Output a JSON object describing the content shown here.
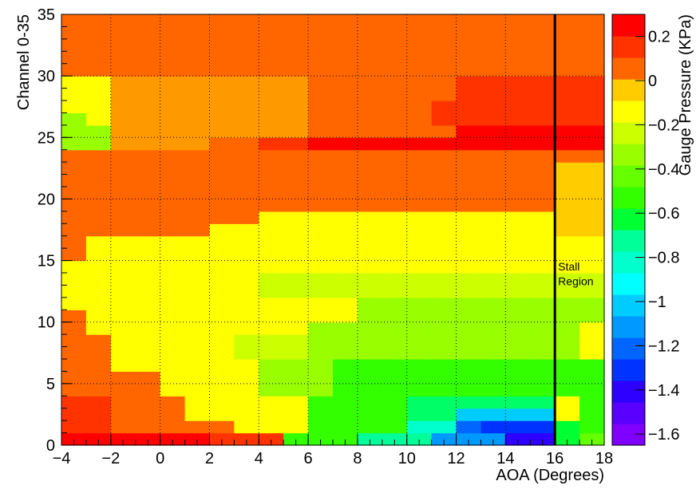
{
  "chart_data": {
    "type": "heatmap",
    "xlabel": "AOA (Degrees)",
    "ylabel": "Channel 0-35",
    "zlabel": "Gauge Pressure (KPa)",
    "xlim": [
      -4,
      18
    ],
    "ylim": [
      0,
      35
    ],
    "zlim": [
      -1.65,
      0.3
    ],
    "x_ticks": [
      -4,
      -2,
      0,
      2,
      4,
      6,
      8,
      10,
      12,
      14,
      16,
      18
    ],
    "y_ticks": [
      0,
      5,
      10,
      15,
      20,
      25,
      30,
      35
    ],
    "z_ticks": [
      0.2,
      0,
      -0.2,
      -0.4,
      -0.6,
      -0.8,
      -1,
      -1.2,
      -1.4,
      -1.6
    ],
    "x_tick_labels": [
      "−4",
      "−2",
      "0",
      "2",
      "4",
      "6",
      "8",
      "10",
      "12",
      "14",
      "16",
      "18"
    ],
    "y_tick_labels": [
      "0",
      "5",
      "10",
      "15",
      "20",
      "25",
      "30",
      "35"
    ],
    "z_tick_labels": [
      "0.2",
      "0",
      "−0.2",
      "−0.4",
      "−0.6",
      "−0.8",
      "−1",
      "−1.2",
      "−1.4",
      "−1.6"
    ],
    "grid": true,
    "x_bin_width": 0.5,
    "y_bin_height": 1,
    "color_levels": 20,
    "stall_line": {
      "x": 16,
      "label_line1": "Stall",
      "label_line2": "Region"
    },
    "palette": [
      "#7f00ff",
      "#5a00ff",
      "#2d00ff",
      "#0000ff",
      "#0033ff",
      "#0066ff",
      "#0099ff",
      "#00ccff",
      "#00ffff",
      "#00ffcc",
      "#00ff99",
      "#00ff66",
      "#00ff33",
      "#33ff00",
      "#66ff00",
      "#99ff00",
      "#ccff00",
      "#ffff00",
      "#ffcc00",
      "#ff9900",
      "#ff6600",
      "#ff3300",
      "#ff0000"
    ],
    "palette_min": -1.65,
    "palette_max": 0.3,
    "regions": [
      {
        "x0": -4,
        "x1": 18,
        "y0": 30,
        "y1": 35,
        "z": 0.08
      },
      {
        "x0": -4,
        "x1": 18,
        "y0": 16,
        "y1": 30,
        "z": -0.18
      },
      {
        "x0": -4,
        "x1": 18,
        "y0": 0,
        "y1": 16,
        "z": -0.18
      },
      {
        "x0": -2,
        "x1": 6,
        "y0": 24,
        "y1": 30,
        "z": 0.0
      },
      {
        "x0": 6,
        "x1": 12,
        "y0": 24,
        "y1": 30,
        "z": 0.05
      },
      {
        "x0": 12,
        "x1": 18,
        "y0": 28,
        "y1": 30,
        "z": 0.16
      },
      {
        "x0": 11,
        "x1": 18,
        "y0": 26,
        "y1": 28,
        "z": 0.16
      },
      {
        "x0": 12,
        "x1": 18,
        "y0": 24,
        "y1": 26,
        "z": 0.25
      },
      {
        "x0": 6,
        "x1": 16,
        "y0": 24,
        "y1": 25,
        "z": 0.25
      },
      {
        "x0": 4,
        "x1": 6,
        "y0": 24,
        "y1": 25,
        "z": 0.16
      },
      {
        "x0": 2,
        "x1": 4,
        "y0": 24,
        "y1": 25,
        "z": 0.1
      },
      {
        "x0": -4,
        "x1": -3,
        "y0": 24,
        "y1": 27,
        "z": -0.35
      },
      {
        "x0": -3,
        "x1": -2,
        "y0": 24,
        "y1": 26,
        "z": -0.3
      },
      {
        "x0": -4,
        "x1": -2,
        "y0": 27,
        "y1": 29,
        "z": -0.2
      },
      {
        "x0": -4,
        "x1": 16,
        "y0": 17,
        "y1": 24,
        "z": 0.08
      },
      {
        "x0": -4,
        "x1": 18,
        "y0": 23,
        "y1": 24,
        "z": 0.1
      },
      {
        "x0": 16,
        "x1": 18,
        "y0": 17,
        "y1": 23,
        "z": -0.12
      },
      {
        "x0": -4,
        "x1": -3,
        "y0": 15,
        "y1": 18,
        "z": 0.05
      },
      {
        "x0": 4,
        "x1": 16,
        "y0": 17,
        "y1": 19,
        "z": -0.18
      },
      {
        "x0": 2,
        "x1": 4,
        "y0": 17,
        "y1": 18,
        "z": -0.18
      },
      {
        "x0": 4,
        "x1": 18,
        "y0": 12,
        "y1": 14,
        "z": -0.24
      },
      {
        "x0": 8,
        "x1": 18,
        "y0": 10,
        "y1": 12,
        "z": -0.3
      },
      {
        "x0": 8,
        "x1": 17,
        "y0": 7,
        "y1": 10,
        "z": -0.36
      },
      {
        "x0": 6,
        "x1": 8,
        "y0": 7,
        "y1": 10,
        "z": -0.3
      },
      {
        "x0": 3,
        "x1": 6,
        "y0": 7,
        "y1": 9,
        "z": -0.24
      },
      {
        "x0": 4,
        "x1": 7,
        "y0": 4,
        "y1": 7,
        "z": -0.36
      },
      {
        "x0": 7,
        "x1": 17,
        "y0": 4,
        "y1": 7,
        "z": -0.48
      },
      {
        "x0": 17,
        "x1": 18,
        "y0": 1,
        "y1": 7,
        "z": -0.5
      },
      {
        "x0": 6,
        "x1": 10,
        "y0": 1,
        "y1": 4,
        "z": -0.5
      },
      {
        "x0": 10,
        "x1": 16,
        "y0": 1,
        "y1": 4,
        "z": -0.65
      },
      {
        "x0": 10,
        "x1": 12,
        "y0": 1,
        "y1": 2,
        "z": -0.85
      },
      {
        "x0": 12,
        "x1": 16,
        "y0": 2,
        "y1": 3,
        "z": -1.0
      },
      {
        "x0": 12,
        "x1": 16,
        "y0": 1,
        "y1": 2,
        "z": -1.15
      },
      {
        "x0": 13,
        "x1": 16,
        "y0": 1,
        "y1": 2,
        "z": -1.3
      },
      {
        "x0": 14,
        "x1": 16,
        "y0": 0,
        "y1": 1,
        "z": -1.45
      },
      {
        "x0": 16,
        "x1": 17,
        "y0": 0,
        "y1": 2,
        "z": -0.55
      },
      {
        "x0": 17,
        "x1": 18,
        "y0": 0,
        "y1": 1,
        "z": -0.45
      },
      {
        "x0": 11,
        "x1": 14,
        "y0": 0,
        "y1": 1,
        "z": -1.1
      },
      {
        "x0": 8,
        "x1": 11,
        "y0": 0,
        "y1": 1,
        "z": -0.8
      },
      {
        "x0": 5,
        "x1": 8,
        "y0": 0,
        "y1": 1,
        "z": -0.5
      },
      {
        "x0": -4,
        "x1": -3,
        "y0": 0,
        "y1": 11,
        "z": 0.08
      },
      {
        "x0": -3,
        "x1": -2,
        "y0": 1,
        "y1": 9,
        "z": 0.08
      },
      {
        "x0": -2,
        "x1": 0,
        "y0": 1,
        "y1": 6,
        "z": 0.08
      },
      {
        "x0": 0,
        "x1": 1,
        "y0": 1,
        "y1": 4,
        "z": 0.08
      },
      {
        "x0": -4,
        "x1": -2,
        "y0": 1,
        "y1": 4,
        "z": 0.16
      },
      {
        "x0": -4,
        "x1": 2,
        "y0": 0,
        "y1": 1,
        "z": 0.25
      },
      {
        "x0": 2,
        "x1": 5,
        "y0": 0,
        "y1": 1,
        "z": 0.16
      },
      {
        "x0": 1,
        "x1": 3,
        "y0": 1,
        "y1": 2,
        "z": 0.08
      }
    ]
  }
}
